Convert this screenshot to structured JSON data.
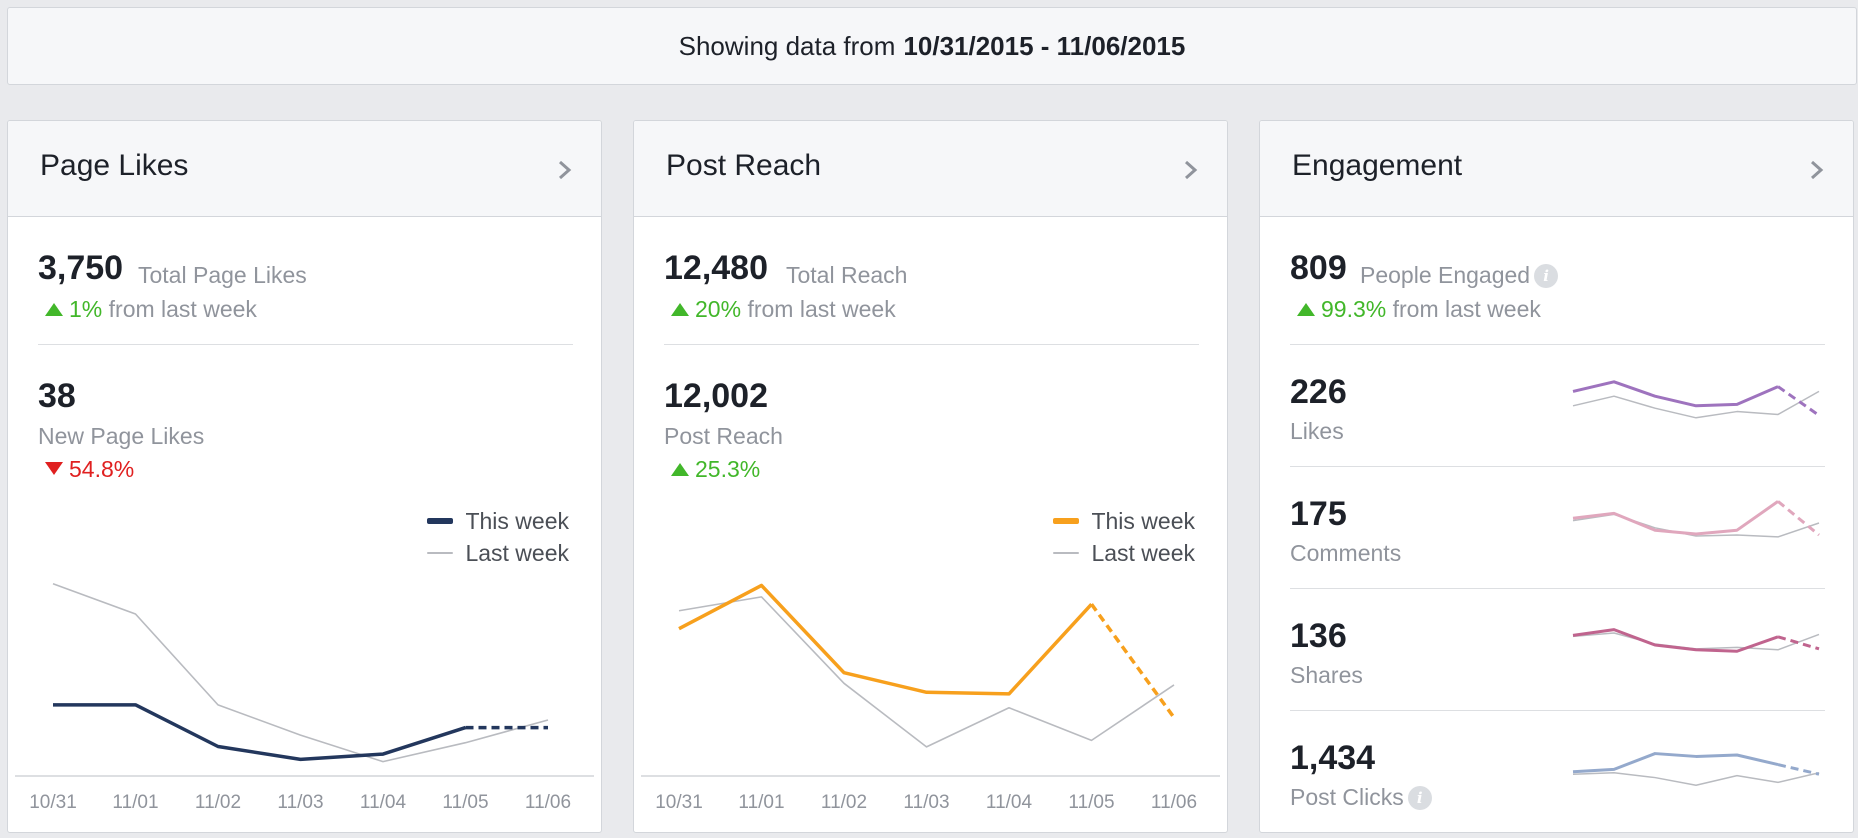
{
  "header": {
    "prefix": "Showing data from",
    "range": "10/31/2015 - 11/06/2015"
  },
  "legend": {
    "this_week": "This week",
    "last_week": "Last week"
  },
  "colors": {
    "page_likes_this": "#23375d",
    "post_reach_this": "#f7a01d",
    "last_week": "#b9bbc0",
    "eng_likes": "#9e73be",
    "eng_comments": "#e0a7bd",
    "eng_shares": "#c0648e",
    "eng_clicks": "#94a9cc",
    "up": "#42b72a",
    "down": "#e02020"
  },
  "page_likes": {
    "title": "Page Likes",
    "total_value": "3,750",
    "total_label": "Total Page Likes",
    "change_pct": "1%",
    "change_text": "from last week",
    "new_value": "38",
    "new_label": "New Page Likes",
    "new_change": "54.8%"
  },
  "post_reach": {
    "title": "Post Reach",
    "total_value": "12,480",
    "total_label": "Total Reach",
    "change_pct": "20%",
    "change_text": "from last week",
    "post_value": "12,002",
    "post_label": "Post Reach",
    "post_change": "25.3%"
  },
  "engagement": {
    "title": "Engagement",
    "total_value": "809",
    "total_label": "People Engaged",
    "change_pct": "99.3%",
    "change_text": "from last week",
    "rows": [
      {
        "value": "226",
        "label": "Likes"
      },
      {
        "value": "175",
        "label": "Comments"
      },
      {
        "value": "136",
        "label": "Shares"
      },
      {
        "value": "1,434",
        "label": "Post Clicks"
      }
    ]
  },
  "chart_data": [
    {
      "type": "line",
      "title": "New Page Likes",
      "categories": [
        "10/31",
        "11/01",
        "11/02",
        "11/03",
        "11/04",
        "11/05",
        "11/06"
      ],
      "series": [
        {
          "name": "This week",
          "values": [
            9,
            9,
            3.5,
            1.8,
            2.5,
            6,
            6
          ]
        },
        {
          "name": "Last week",
          "values": [
            25,
            21,
            9,
            5,
            1.5,
            4,
            7
          ]
        }
      ],
      "ylim": [
        0,
        28
      ],
      "projected_last_segment": true
    },
    {
      "type": "line",
      "title": "Post Reach",
      "categories": [
        "10/31",
        "11/01",
        "11/02",
        "11/03",
        "11/04",
        "11/05",
        "11/06"
      ],
      "series": [
        {
          "name": "This week",
          "values": [
            1770,
            2300,
            1230,
            990,
            970,
            2070,
            680
          ]
        },
        {
          "name": "Last week",
          "values": [
            1990,
            2160,
            1100,
            320,
            800,
            400,
            1080
          ]
        }
      ],
      "ylim": [
        0,
        2600
      ],
      "projected_last_segment": true
    },
    {
      "type": "line",
      "title": "Likes",
      "series": [
        {
          "name": "This week",
          "values": [
            7,
            9,
            6,
            4,
            4.3,
            8,
            2
          ]
        },
        {
          "name": "Last week",
          "values": [
            4,
            6,
            3.5,
            1.5,
            2.8,
            2.2,
            7
          ]
        }
      ],
      "ylim": [
        0,
        10
      ],
      "projected_last_segment": true
    },
    {
      "type": "line",
      "title": "Comments",
      "series": [
        {
          "name": "This week",
          "values": [
            6,
            7,
            3.5,
            2.7,
            3.5,
            9.5,
            2.5
          ]
        },
        {
          "name": "Last week",
          "values": [
            5.5,
            6.8,
            4,
            2.3,
            2.5,
            2.1,
            5
          ]
        }
      ],
      "ylim": [
        0,
        10
      ],
      "projected_last_segment": true
    },
    {
      "type": "line",
      "title": "Shares",
      "series": [
        {
          "name": "This week",
          "values": [
            7,
            8.2,
            5,
            4,
            3.7,
            6.7,
            4.2
          ]
        },
        {
          "name": "Last week",
          "values": [
            6.8,
            7.5,
            5.2,
            4.2,
            4.5,
            4,
            7.2
          ]
        }
      ],
      "ylim": [
        0,
        10
      ],
      "projected_last_segment": true
    },
    {
      "type": "line",
      "title": "Post Clicks",
      "series": [
        {
          "name": "This week",
          "values": [
            4,
            4.5,
            7.8,
            7.2,
            7.5,
            5.5,
            3.5
          ]
        },
        {
          "name": "Last week",
          "values": [
            3.5,
            3.8,
            2.8,
            1.2,
            3.2,
            1.8,
            3.8
          ]
        }
      ],
      "ylim": [
        0,
        10
      ],
      "projected_last_segment": true
    }
  ]
}
